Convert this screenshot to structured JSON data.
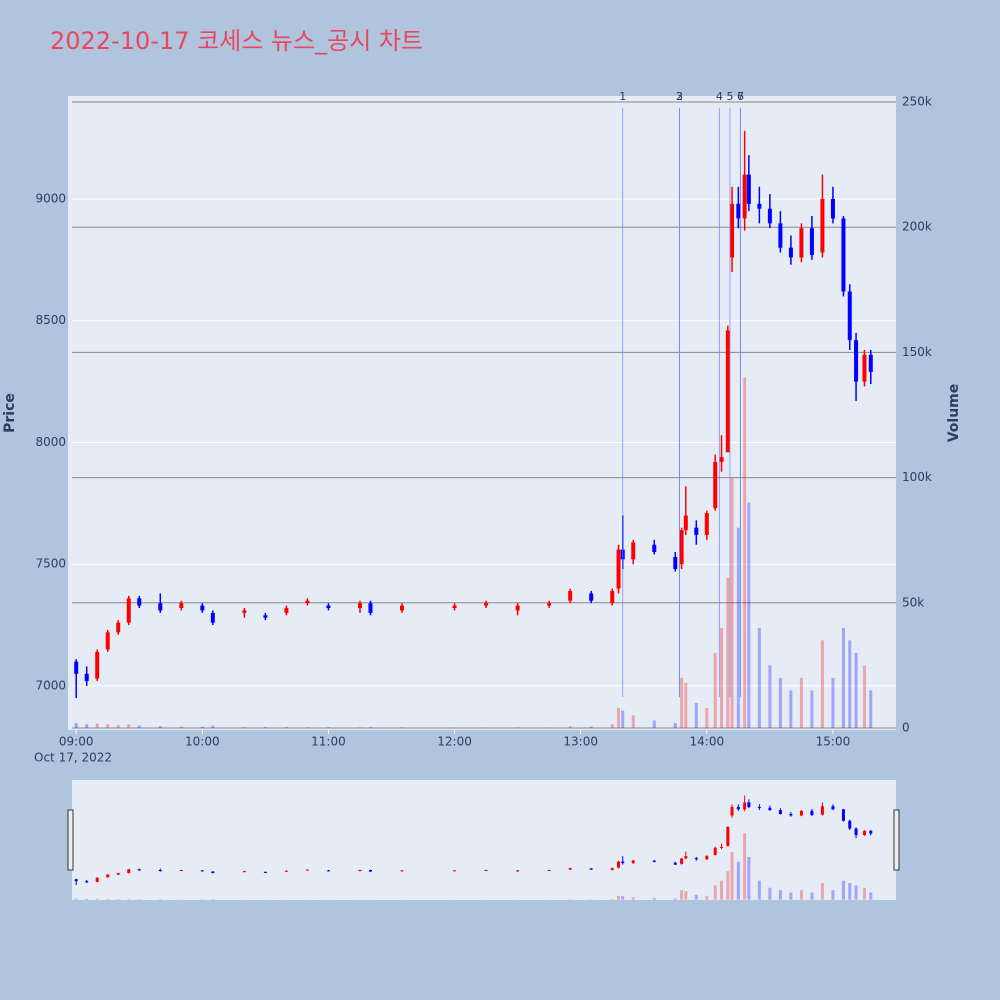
{
  "chart_data": {
    "type": "candlestick",
    "title": "2022-10-17 코세스 뉴스_공시 차트",
    "y_label": "Price",
    "y2_label": "Volume",
    "x_sublabel": "Oct 17, 2022",
    "increasing_color": "#ff0000",
    "decreasing_color": "#0000ff",
    "x": [
      "2022-10-17 09:00",
      "2022-10-17 09:05",
      "2022-10-17 09:10",
      "2022-10-17 09:15",
      "2022-10-17 09:20",
      "2022-10-17 09:25",
      "2022-10-17 09:30",
      "2022-10-17 09:40",
      "2022-10-17 09:50",
      "2022-10-17 10:00",
      "2022-10-17 10:05",
      "2022-10-17 10:20",
      "2022-10-17 10:30",
      "2022-10-17 10:40",
      "2022-10-17 10:50",
      "2022-10-17 11:00",
      "2022-10-17 11:15",
      "2022-10-17 11:20",
      "2022-10-17 11:35",
      "2022-10-17 12:00",
      "2022-10-17 12:15",
      "2022-10-17 12:30",
      "2022-10-17 12:45",
      "2022-10-17 12:55",
      "2022-10-17 13:05",
      "2022-10-17 13:15",
      "2022-10-17 13:18",
      "2022-10-17 13:20",
      "2022-10-17 13:25",
      "2022-10-17 13:35",
      "2022-10-17 13:45",
      "2022-10-17 13:48",
      "2022-10-17 13:50",
      "2022-10-17 13:55",
      "2022-10-17 14:00",
      "2022-10-17 14:04",
      "2022-10-17 14:07",
      "2022-10-17 14:10",
      "2022-10-17 14:12",
      "2022-10-17 14:15",
      "2022-10-17 14:18",
      "2022-10-17 14:20",
      "2022-10-17 14:25",
      "2022-10-17 14:30",
      "2022-10-17 14:35",
      "2022-10-17 14:40",
      "2022-10-17 14:45",
      "2022-10-17 14:50",
      "2022-10-17 14:55",
      "2022-10-17 15:00",
      "2022-10-17 15:05",
      "2022-10-17 15:08",
      "2022-10-17 15:11",
      "2022-10-17 15:15",
      "2022-10-17 15:18"
    ],
    "open": [
      7100,
      7050,
      7030,
      7150,
      7220,
      7260,
      7360,
      7340,
      7320,
      7330,
      7300,
      7300,
      7290,
      7300,
      7340,
      7330,
      7320,
      7340,
      7310,
      7320,
      7330,
      7310,
      7330,
      7350,
      7380,
      7340,
      7400,
      7560,
      7520,
      7580,
      7530,
      7500,
      7640,
      7650,
      7620,
      7730,
      7920,
      7960,
      8760,
      8980,
      8920,
      9100,
      8980,
      8960,
      8900,
      8800,
      8760,
      8880,
      8780,
      9000,
      8920,
      8620,
      8420,
      8250,
      8360
    ],
    "high": [
      7110,
      7080,
      7150,
      7230,
      7270,
      7370,
      7370,
      7380,
      7350,
      7340,
      7310,
      7320,
      7300,
      7330,
      7360,
      7340,
      7350,
      7350,
      7340,
      7340,
      7350,
      7340,
      7350,
      7400,
      7390,
      7400,
      7580,
      7700,
      7600,
      7600,
      7550,
      7650,
      7820,
      7680,
      7720,
      7950,
      8030,
      8480,
      9050,
      9050,
      9280,
      9180,
      9050,
      9020,
      8950,
      8850,
      8900,
      8930,
      9100,
      9050,
      8930,
      8650,
      8450,
      8380,
      8380
    ],
    "low": [
      6950,
      7000,
      7020,
      7140,
      7210,
      7250,
      7320,
      7300,
      7310,
      7300,
      7250,
      7280,
      7270,
      7290,
      7330,
      7310,
      7300,
      7290,
      7300,
      7310,
      7320,
      7290,
      7320,
      7340,
      7340,
      7330,
      7380,
      7480,
      7500,
      7540,
      7470,
      7480,
      7620,
      7580,
      7600,
      7720,
      7880,
      7960,
      8700,
      8880,
      8870,
      8950,
      8900,
      8880,
      8780,
      8730,
      8740,
      8750,
      8760,
      8900,
      8600,
      8380,
      8170,
      8230,
      8240
    ],
    "close": [
      7050,
      7020,
      7140,
      7220,
      7260,
      7360,
      7330,
      7310,
      7340,
      7310,
      7260,
      7310,
      7280,
      7320,
      7350,
      7320,
      7340,
      7300,
      7330,
      7330,
      7340,
      7330,
      7340,
      7390,
      7350,
      7390,
      7560,
      7520,
      7590,
      7550,
      7480,
      7640,
      7700,
      7620,
      7710,
      7920,
      7940,
      8460,
      8980,
      8920,
      9100,
      8980,
      8960,
      8900,
      8800,
      8760,
      8880,
      8770,
      9000,
      8920,
      8620,
      8420,
      8250,
      8360,
      8290
    ],
    "volume": [
      2000,
      1500,
      1800,
      1500,
      1200,
      1500,
      1000,
      800,
      600,
      500,
      1000,
      400,
      300,
      400,
      300,
      300,
      300,
      300,
      300,
      200,
      200,
      300,
      200,
      800,
      600,
      1500,
      8000,
      7000,
      5000,
      3000,
      2000,
      20000,
      18000,
      10000,
      8000,
      30000,
      40000,
      60000,
      100000,
      80000,
      140000,
      90000,
      40000,
      25000,
      20000,
      15000,
      20000,
      15000,
      35000,
      20000,
      40000,
      35000,
      30000,
      25000,
      15000
    ],
    "events": [
      {
        "x": "2022-10-17 13:20",
        "label": "1"
      },
      {
        "x": "2022-10-17 13:47",
        "label": "2"
      },
      {
        "x": "2022-10-17 13:47",
        "label": "3"
      },
      {
        "x": "2022-10-17 14:06",
        "label": "4"
      },
      {
        "x": "2022-10-17 14:11",
        "label": "5"
      },
      {
        "x": "2022-10-17 14:16",
        "label": "6"
      },
      {
        "x": "2022-10-17 14:16",
        "label": "7"
      }
    ],
    "xlim": [
      "2022-10-17 08:58",
      "2022-10-17 15:30"
    ],
    "xticks": [
      {
        "value": "2022-10-17 09:00",
        "label": "09:00"
      },
      {
        "value": "2022-10-17 10:00",
        "label": "10:00"
      },
      {
        "value": "2022-10-17 11:00",
        "label": "11:00"
      },
      {
        "value": "2022-10-17 12:00",
        "label": "12:00"
      },
      {
        "value": "2022-10-17 13:00",
        "label": "13:00"
      },
      {
        "value": "2022-10-17 14:00",
        "label": "14:00"
      },
      {
        "value": "2022-10-17 15:00",
        "label": "15:00"
      }
    ],
    "ylim": [
      6819,
      9423
    ],
    "yticks": [
      7000,
      7500,
      8000,
      8500,
      9000
    ],
    "y2lim": [
      -800,
      252400
    ],
    "y2ticks": [
      0,
      {
        "value": 50000,
        "label": "50k"
      },
      {
        "value": 100000,
        "label": "100k"
      },
      {
        "value": 150000,
        "label": "150k"
      },
      {
        "value": 200000,
        "label": "200k"
      },
      {
        "value": 250000,
        "label": "250k"
      }
    ],
    "grid": true
  }
}
